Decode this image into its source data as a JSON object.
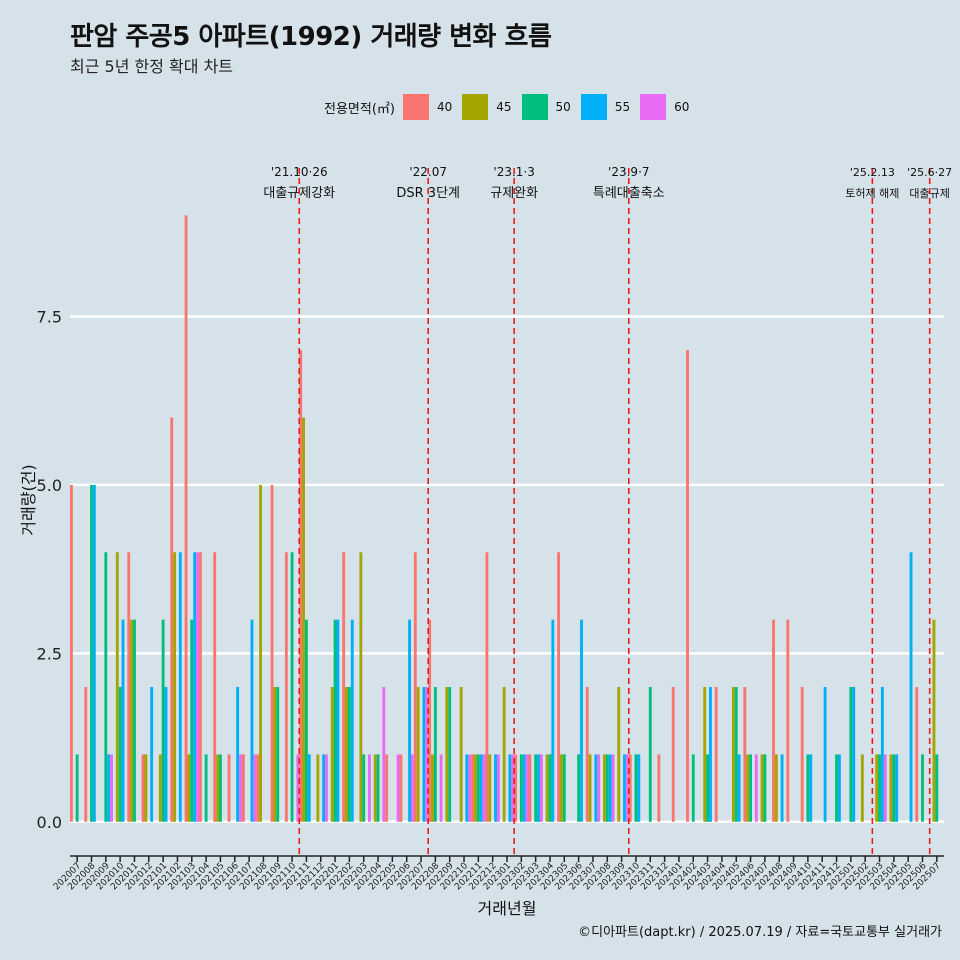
{
  "header": {
    "title": "판암 주공5 아파트(1992) 거래량 변화 흐름",
    "subtitle": "최근 5년 한정 확대 차트"
  },
  "legend": {
    "title": "전용면적(㎡)",
    "items": [
      {
        "label": "40",
        "color": "#F8766D"
      },
      {
        "label": "45",
        "color": "#A3A500"
      },
      {
        "label": "50",
        "color": "#00BF7D"
      },
      {
        "label": "55",
        "color": "#00B0F6"
      },
      {
        "label": "60",
        "color": "#E76BF3"
      }
    ]
  },
  "caption": "©디아파트(dapt.kr) / 2025.07.19 / 자료=국토교통부 실거래가",
  "chart_data": {
    "type": "bar",
    "xlabel": "거래년월",
    "ylabel": "거래량(건)",
    "ylim": [
      -0.3,
      10
    ],
    "yticks": [
      0.0,
      2.5,
      5.0,
      7.5
    ],
    "ytick_labels": [
      "0.0",
      "2.5",
      "5.0",
      "7.5"
    ],
    "x_tick_labels": [
      "202007",
      "202008",
      "202009",
      "202010",
      "202011",
      "202012",
      "202101",
      "202102",
      "202103",
      "202104",
      "202105",
      "202106",
      "202107",
      "202108",
      "202109",
      "202110",
      "202111",
      "202112",
      "202201",
      "202202",
      "202203",
      "202204",
      "202205",
      "202206",
      "202207",
      "202208",
      "202209",
      "202210",
      "202211",
      "202212",
      "202301",
      "202302",
      "202303",
      "202304",
      "202305",
      "202306",
      "202307",
      "202308",
      "202309",
      "202310",
      "202311",
      "202312",
      "202401",
      "202402",
      "202403",
      "202404",
      "202405",
      "202406",
      "202407",
      "202408",
      "202409",
      "202410",
      "202411",
      "202412",
      "202501",
      "202502",
      "202503",
      "202504",
      "202505",
      "202506",
      "202507"
    ],
    "series_names": [
      "40",
      "45",
      "50",
      "55",
      "60"
    ],
    "values": [
      [
        5,
        0,
        1,
        0,
        0
      ],
      [
        2,
        0,
        5,
        5,
        0
      ],
      [
        0,
        0,
        4,
        1,
        1
      ],
      [
        0,
        4,
        2,
        3,
        0
      ],
      [
        4,
        3,
        3,
        0,
        0
      ],
      [
        1,
        1,
        0,
        2,
        0
      ],
      [
        0,
        1,
        3,
        2,
        0
      ],
      [
        6,
        4,
        0,
        4,
        0
      ],
      [
        9,
        1,
        3,
        4,
        4
      ],
      [
        4,
        0,
        1,
        0,
        0
      ],
      [
        4,
        1,
        1,
        0,
        0
      ],
      [
        1,
        0,
        0,
        2,
        1
      ],
      [
        1,
        0,
        0,
        3,
        1
      ],
      [
        1,
        5,
        0,
        0,
        0
      ],
      [
        5,
        2,
        2,
        0,
        0
      ],
      [
        4,
        0,
        4,
        0,
        1
      ],
      [
        7,
        6,
        3,
        1,
        0
      ],
      [
        0,
        1,
        0,
        1,
        1
      ],
      [
        0,
        2,
        3,
        3,
        0
      ],
      [
        4,
        2,
        2,
        3,
        0
      ],
      [
        0,
        4,
        1,
        0,
        1
      ],
      [
        0,
        1,
        1,
        0,
        2
      ],
      [
        1,
        0,
        0,
        0,
        1
      ],
      [
        1,
        0,
        0,
        3,
        1
      ],
      [
        4,
        2,
        0,
        2,
        2
      ],
      [
        3,
        1,
        2,
        0,
        1
      ],
      [
        0,
        2,
        2,
        0,
        0
      ],
      [
        0,
        2,
        0,
        1,
        1
      ],
      [
        1,
        1,
        1,
        1,
        1
      ],
      [
        4,
        1,
        0,
        1,
        1
      ],
      [
        0,
        2,
        0,
        1,
        1
      ],
      [
        1,
        0,
        1,
        1,
        1
      ],
      [
        1,
        0,
        1,
        1,
        1
      ],
      [
        0,
        1,
        1,
        3,
        0
      ],
      [
        4,
        1,
        1,
        0,
        0
      ],
      [
        0,
        0,
        1,
        3,
        0
      ],
      [
        2,
        1,
        0,
        1,
        1
      ],
      [
        0,
        1,
        1,
        1,
        1
      ],
      [
        0,
        2,
        0,
        1,
        1
      ],
      [
        1,
        0,
        1,
        1,
        0
      ],
      [
        0,
        0,
        2,
        0,
        0
      ],
      [
        1,
        0,
        0,
        0,
        0
      ],
      [
        2,
        0,
        0,
        0,
        0
      ],
      [
        7,
        0,
        1,
        0,
        0
      ],
      [
        0,
        2,
        1,
        2,
        0
      ],
      [
        2,
        0,
        0,
        0,
        0
      ],
      [
        0,
        2,
        2,
        1,
        0
      ],
      [
        2,
        1,
        1,
        0,
        1
      ],
      [
        0,
        1,
        1,
        0,
        0
      ],
      [
        3,
        1,
        0,
        1,
        0
      ],
      [
        3,
        0,
        0,
        0,
        0
      ],
      [
        2,
        0,
        1,
        1,
        0
      ],
      [
        0,
        0,
        0,
        2,
        0
      ],
      [
        0,
        0,
        1,
        1,
        0
      ],
      [
        0,
        0,
        2,
        2,
        0
      ],
      [
        0,
        1,
        0,
        0,
        0
      ],
      [
        0,
        1,
        1,
        2,
        1
      ],
      [
        0,
        1,
        1,
        1,
        0
      ],
      [
        0,
        0,
        0,
        4,
        0
      ],
      [
        2,
        0,
        1,
        0,
        0
      ],
      [
        0,
        3,
        1,
        0,
        0
      ]
    ],
    "annotations": [
      {
        "x_index": 15.5,
        "date": "'21.10·26",
        "label": "대출규제강화"
      },
      {
        "x_index": 24.5,
        "date": "'22.07",
        "label": "DSR 3단계"
      },
      {
        "x_index": 30.5,
        "date": "'23.1·3",
        "label": "규제완화"
      },
      {
        "x_index": 38.5,
        "date": "'23.9·7",
        "label": "특례대출축소"
      },
      {
        "x_index": 55.5,
        "date": "'25.2.13",
        "label": "토허제 해제"
      },
      {
        "x_index": 59.5,
        "date": "'25.6·27",
        "label": "대출규제"
      }
    ]
  }
}
